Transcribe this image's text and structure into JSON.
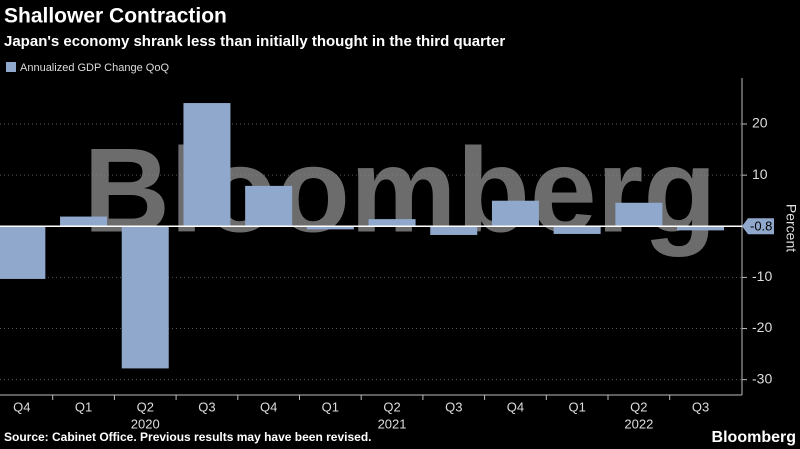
{
  "chart_data": {
    "type": "bar",
    "title": "Shallower Contraction",
    "subtitle": "Japan's economy shrank less than initially thought in the third quarter",
    "categories": [
      "Q4",
      "Q1",
      "Q2",
      "Q3",
      "Q4",
      "Q1",
      "Q2",
      "Q3",
      "Q4",
      "Q1",
      "Q2",
      "Q3"
    ],
    "year_labels": [
      "2020",
      "2021",
      "2022"
    ],
    "series": [
      {
        "name": "Annualized GDP Change QoQ",
        "color": "#8fa8cc",
        "values": [
          -10.3,
          1.9,
          -27.8,
          24.1,
          7.9,
          -0.6,
          1.4,
          -1.7,
          5.0,
          -1.5,
          4.6,
          -0.8
        ]
      }
    ],
    "ylim": [
      -33,
      29
    ],
    "yticks": [
      -30,
      -20,
      -10,
      10,
      20
    ],
    "grid": true,
    "y_label": "Percent",
    "source": "Source: Cabinet Office. Previous results may have been revised.",
    "watermark": "Bloomberg",
    "logo": "Bloomberg"
  }
}
